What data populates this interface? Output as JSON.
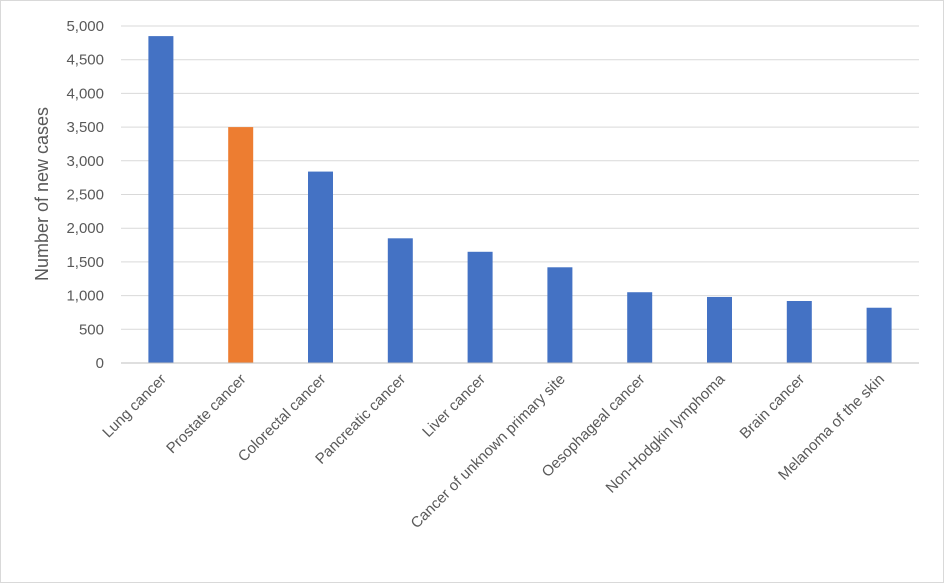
{
  "chart_data": {
    "type": "bar",
    "title": "",
    "xlabel": "",
    "ylabel": "Number of new cases",
    "ylim": [
      0,
      5000
    ],
    "ytick_step": 500,
    "ytick_labels": [
      "0",
      "500",
      "1,000",
      "1,500",
      "2,000",
      "2,500",
      "3,000",
      "3,500",
      "4,000",
      "4,500",
      "5,000"
    ],
    "grid": true,
    "legend": "none",
    "categories": [
      "Lung cancer",
      "Prostate cancer",
      "Colorectal cancer",
      "Pancreatic cancer",
      "Liver cancer",
      "Cancer of unknown primary site",
      "Oesophageal cancer",
      "Non-Hodgkin lymphoma",
      "Brain cancer",
      "Melanoma of the skin"
    ],
    "values": [
      4850,
      3500,
      2840,
      1850,
      1650,
      1420,
      1050,
      980,
      920,
      820
    ],
    "colors": {
      "default": "#4472C4",
      "highlight": "#ED7D31",
      "grid": "#d9d9d9",
      "axis": "#bfbfbf",
      "text": "#595959"
    },
    "highlight_index": 1
  }
}
